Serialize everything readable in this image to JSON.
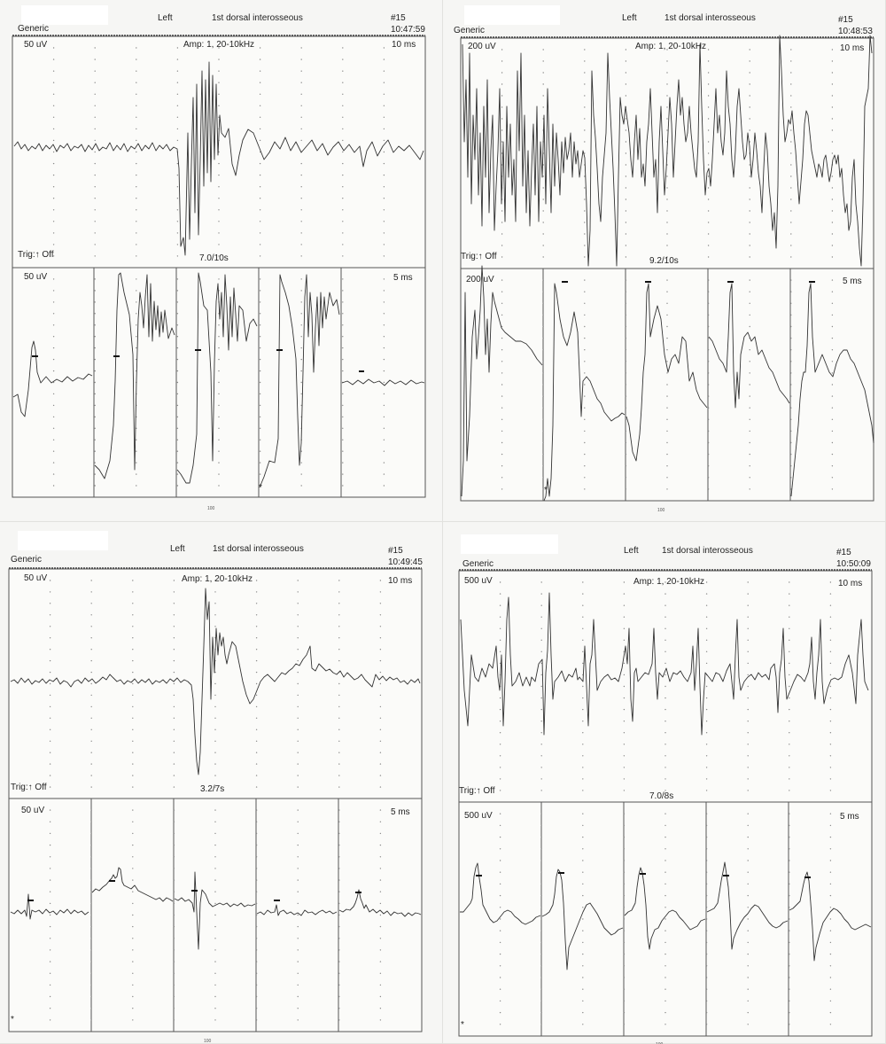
{
  "panels": [
    {
      "label": "Generic",
      "side": "Left",
      "muscle": "1st dorsal interosseous",
      "record": "#15",
      "time": "10:47:59",
      "top_scale": "50 uV",
      "amp": "Amp: 1, 20-10kHz",
      "top_sweep": "10 ms",
      "trig": "Trig:↑  Off",
      "rate": "7.0/10s",
      "bottom_scale": "50 uV",
      "bottom_sweep": "5 ms",
      "footer": "100",
      "bottom_corner_mark": "*"
    },
    {
      "label": "Generic",
      "side": "Left",
      "muscle": "1st dorsal interosseous",
      "record": "#15",
      "time": "10:48:53",
      "top_scale": "200 uV",
      "amp": "Amp: 1, 20-10kHz",
      "top_sweep": "10 ms",
      "trig": "Trig:↑  Off",
      "rate": "9.2/10s",
      "bottom_scale": "200 uV",
      "bottom_sweep": "5 ms",
      "footer": "100",
      "bottom_corner_mark": "*"
    },
    {
      "label": "Generic",
      "side": "Left",
      "muscle": "1st dorsal interosseous",
      "record": "#15",
      "time": "10:49:45",
      "top_scale": "50 uV",
      "amp": "Amp: 1, 20-10kHz",
      "top_sweep": "10 ms",
      "trig": "Trig:↑  Off",
      "rate": "3.2/7s",
      "bottom_scale": "50 uV",
      "bottom_sweep": "5 ms",
      "footer": "100",
      "bottom_corner_mark": "*"
    },
    {
      "label": "Generic",
      "side": "Left",
      "muscle": "1st dorsal interosseous",
      "record": "#15",
      "time": "10:50:09",
      "top_scale": "500 uV",
      "amp": "Amp: 1, 20-10kHz",
      "top_sweep": "10 ms",
      "trig": "Trig:↑  Off",
      "rate": "7.0/8s",
      "bottom_scale": "500 uV",
      "bottom_sweep": "5 ms",
      "footer": "100",
      "bottom_corner_mark": "*"
    }
  ],
  "chart_data": [
    {
      "type": "line",
      "title": "Left 1st dorsal interosseous #15 10:47:59",
      "top_trace": {
        "scale": "50 uV",
        "sweep": "10 ms",
        "rate": "7.0/10s"
      },
      "bottom_traces": {
        "scale": "50 uV",
        "sweep": "5 ms",
        "count": 5
      }
    },
    {
      "type": "line",
      "title": "Left 1st dorsal interosseous #15 10:48:53",
      "top_trace": {
        "scale": "200 uV",
        "sweep": "10 ms",
        "rate": "9.2/10s"
      },
      "bottom_traces": {
        "scale": "200 uV",
        "sweep": "5 ms",
        "count": 5
      }
    },
    {
      "type": "line",
      "title": "Left 1st dorsal interosseous #15 10:49:45",
      "top_trace": {
        "scale": "50 uV",
        "sweep": "10 ms",
        "rate": "3.2/7s"
      },
      "bottom_traces": {
        "scale": "50 uV",
        "sweep": "5 ms",
        "count": 5
      }
    },
    {
      "type": "line",
      "title": "Left 1st dorsal interosseous #15 10:50:09",
      "top_trace": {
        "scale": "500 uV",
        "sweep": "10 ms",
        "rate": "7.0/8s"
      },
      "bottom_traces": {
        "scale": "500 uV",
        "sweep": "5 ms",
        "count": 5
      }
    }
  ],
  "colors": {
    "trace": "#333333",
    "paper": "#f6f6f4",
    "grid": "#8a8a8a"
  }
}
